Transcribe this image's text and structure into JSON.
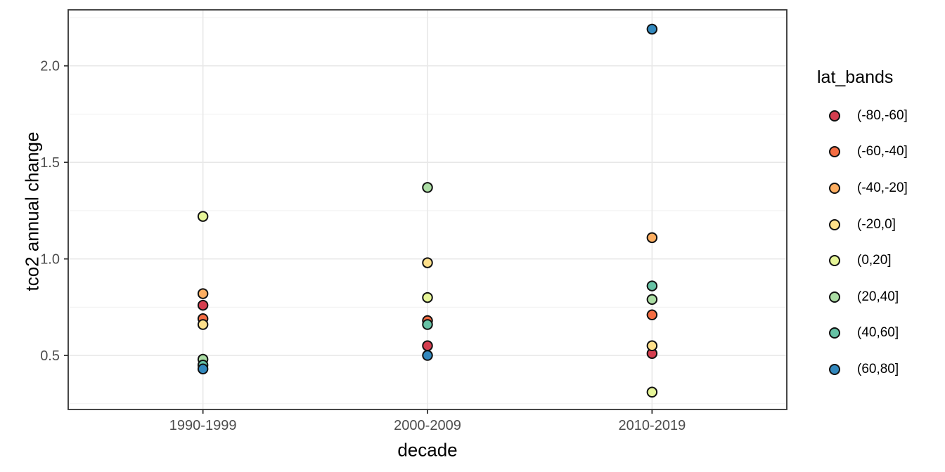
{
  "chart_data": {
    "type": "scatter",
    "title": "",
    "xlabel": "decade",
    "ylabel": "tco2 annual change",
    "categories": [
      "1990-1999",
      "2000-2009",
      "2010-2019"
    ],
    "ylim": [
      0.22,
      2.29
    ],
    "y_major_ticks": [
      0.5,
      1.0,
      1.5,
      2.0
    ],
    "y_minor_ticks": [
      0.25,
      0.75,
      1.25,
      1.75,
      2.25
    ],
    "grid": true,
    "legend_title": "lat_bands",
    "legend_position": "right",
    "point_outline": "#111111",
    "series": [
      {
        "name": "(-80,-60]",
        "color": "#d53e4f",
        "values": [
          0.76,
          0.55,
          0.51
        ]
      },
      {
        "name": "(-60,-40]",
        "color": "#f46d43",
        "values": [
          0.69,
          0.68,
          0.71
        ]
      },
      {
        "name": "(-40,-20]",
        "color": "#fdae61",
        "values": [
          0.82,
          null,
          1.11
        ]
      },
      {
        "name": "(-20,0]",
        "color": "#fee08b",
        "values": [
          0.66,
          0.98,
          0.55
        ]
      },
      {
        "name": "(0,20]",
        "color": "#e6f598",
        "values": [
          1.22,
          0.8,
          0.31
        ]
      },
      {
        "name": "(20,40]",
        "color": "#abdda4",
        "values": [
          0.48,
          1.37,
          0.79
        ]
      },
      {
        "name": "(40,60]",
        "color": "#66c2a5",
        "values": [
          0.45,
          0.66,
          0.86
        ]
      },
      {
        "name": "(60,80]",
        "color": "#3288bd",
        "values": [
          0.43,
          0.5,
          2.19
        ]
      }
    ],
    "note": "The 2000-2009 point for (-60,-40] at 0.68 is almost fully hidden behind the (40,60] point at 0.66; only its dark outline is visible."
  },
  "theme": {
    "panel_border_color": "#333333",
    "major_grid_color": "#e8e8e8",
    "minor_grid_color": "#f1f1f1",
    "tick_color": "#333333",
    "tick_label_color": "#4d4d4d",
    "background": "#ffffff"
  }
}
